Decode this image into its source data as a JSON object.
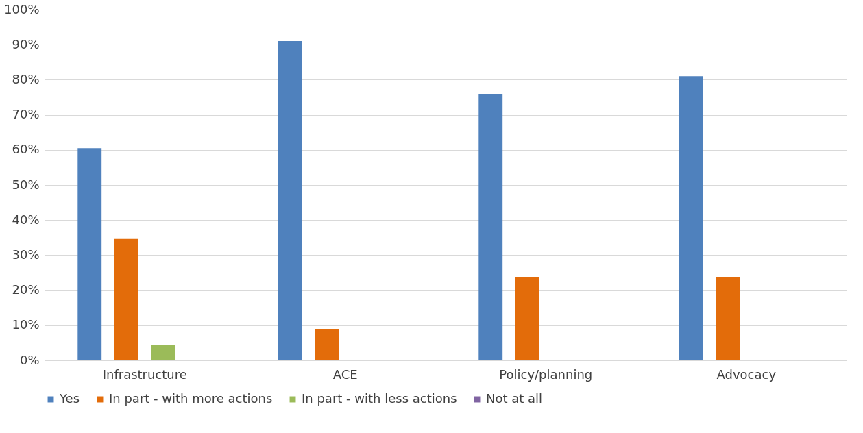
{
  "chart_data": {
    "type": "bar",
    "categories": [
      "Infrastructure",
      "ACE",
      "Policy/planning",
      "Advocacy"
    ],
    "series": [
      {
        "name": "Yes",
        "color": "#4f81bd",
        "values": [
          60.5,
          91,
          76,
          81
        ]
      },
      {
        "name": "In part - with more actions",
        "color": "#e36c0a",
        "values": [
          34.6,
          9,
          23.8,
          23.8
        ]
      },
      {
        "name": "In part - with less actions",
        "color": "#9bbb59",
        "values": [
          4.5,
          0,
          0,
          0
        ]
      },
      {
        "name": "Not at all",
        "color": "#8064a2",
        "values": [
          0,
          0,
          0,
          0
        ]
      }
    ],
    "ylim": [
      0,
      100
    ],
    "yticks": [
      {
        "value": 0,
        "label": "0%"
      },
      {
        "value": 10,
        "label": "10%"
      },
      {
        "value": 20,
        "label": "20%"
      },
      {
        "value": 30,
        "label": "30%"
      },
      {
        "value": 40,
        "label": "40%"
      },
      {
        "value": 50,
        "label": "50%"
      },
      {
        "value": 60,
        "label": "60%"
      },
      {
        "value": 70,
        "label": "70%"
      },
      {
        "value": 80,
        "label": "80%"
      },
      {
        "value": 90,
        "label": "90%"
      },
      {
        "value": 100,
        "label": "100%"
      }
    ],
    "grid": "y",
    "legend": "bottom"
  }
}
